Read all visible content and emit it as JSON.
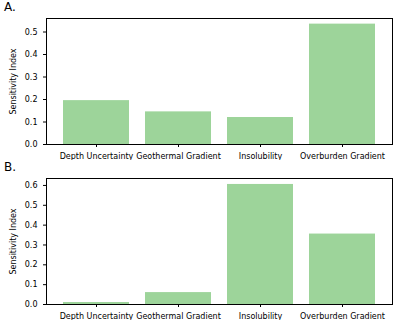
{
  "chart_data": [
    {
      "type": "bar",
      "title": "A.",
      "categories": [
        "Depth Uncertainty",
        "Geothermal Gradient",
        "Insolubility",
        "Overburden Gradient"
      ],
      "values": [
        0.195,
        0.145,
        0.12,
        0.535
      ],
      "color": "#9dd49a",
      "y_label": "Sensitivity Index",
      "ylim": [
        0,
        0.56
      ],
      "yticks": [
        {
          "value": 0,
          "label": "0.0"
        },
        0.1,
        0.2,
        0.3,
        0.4,
        0.5
      ]
    },
    {
      "type": "bar",
      "title": "B.",
      "categories": [
        "Depth Uncertainty",
        "Geothermal Gradient",
        "Insolubility",
        "Overburden Gradient"
      ],
      "values": [
        0.01,
        0.06,
        0.605,
        0.355
      ],
      "color": "#9dd49a",
      "y_label": "Sensitivity Index",
      "ylim": [
        0,
        0.635
      ],
      "yticks": [
        {
          "value": 0,
          "label": "0.0"
        },
        0.1,
        0.2,
        0.3,
        0.4,
        0.5,
        0.6
      ]
    }
  ]
}
